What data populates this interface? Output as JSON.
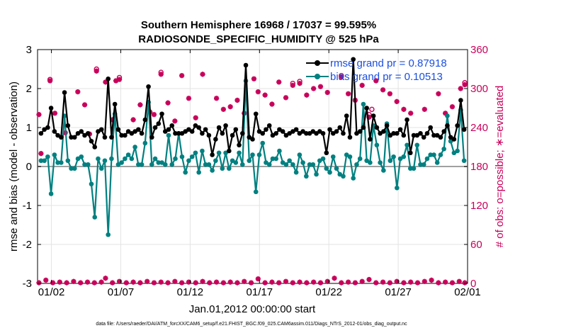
{
  "chart_data": {
    "type": "line",
    "title_line1": "Southern Hemisphere 16968 / 17037 = 99.595%",
    "title_line2": "RADIOSONDE_SPECIFIC_HUMIDITY @ 525 hPa",
    "ylabel_left": "rmse and bias (model - observation)",
    "ylabel_right": "# of obs: o=possible; ∗=evaluated",
    "xlabel": "Jan.01,2012 00:00:00 start",
    "footnote": "data file: /Users/raeder/DAI/ATM_forcXX/CAM6_setup/f.e21.FHIST_BGC.f09_025.CAM6assim.011/Diags_NTrS_2012-01/obs_diag_output.nc",
    "ylim_left": [
      -3,
      3
    ],
    "ylim_right": [
      0,
      360
    ],
    "xlim": [
      0.5,
      31.5
    ],
    "x_ticks": [
      1.5,
      6.5,
      11.5,
      16.5,
      21.5,
      26.5,
      31.5
    ],
    "x_tick_labels": [
      "01/02",
      "01/07",
      "01/12",
      "01/17",
      "01/22",
      "01/27",
      "02/01"
    ],
    "y_ticks_left": [
      3,
      2,
      1,
      0,
      -1,
      -2,
      -3
    ],
    "y_ticks_right": [
      360,
      300,
      240,
      180,
      120,
      60,
      0
    ],
    "legend": {
      "rmse_label": "rmse grand pr = 0.87918",
      "bias_label": "bias grand pr = 0.10513",
      "placement": "top-right"
    },
    "colors": {
      "rmse": "#000000",
      "bias": "#008080",
      "obs": "#c8005a",
      "legend_text": "#1a4fe0",
      "zero_line": "#a0a0a0"
    },
    "series": [
      {
        "name": "rmse",
        "values": [
          0.85,
          0.95,
          1.0,
          1.5,
          0.9,
          0.8,
          0.75,
          1.9,
          1.05,
          0.75,
          0.75,
          0.85,
          0.9,
          0.8,
          0.85,
          0.65,
          0.5,
          0.9,
          0.95,
          0.75,
          2.25,
          0.75,
          1.6,
          0.95,
          0.8,
          0.8,
          0.9,
          0.85,
          0.9,
          0.95,
          0.85,
          1.2,
          2.05,
          0.75,
          1.0,
          1.1,
          1.35,
          0.9,
          0.95,
          1.05,
          0.85,
          0.85,
          0.85,
          0.9,
          0.95,
          0.9,
          1.05,
          1.0,
          0.85,
          0.95,
          0.8,
          0.3,
          0.7,
          1.0,
          0.85,
          1.05,
          0.4,
          0.8,
          0.95,
          0.55,
          0.85,
          2.6,
          0.75,
          0.7,
          1.35,
          0.9,
          0.85,
          0.95,
          1.05,
          0.8,
          0.85,
          0.95,
          0.9,
          0.8,
          0.85,
          0.9,
          0.95,
          0.85,
          0.9,
          0.85,
          0.85,
          0.9,
          0.85,
          0.9,
          0.85,
          0.35,
          0.95,
          0.85,
          0.9,
          1.0,
          0.85,
          1.3,
          0.75,
          2.75,
          0.85,
          0.9,
          1.0,
          1.5,
          0.7,
          1.3,
          1.0,
          0.85,
          0.9,
          1.05,
          0.8,
          0.85,
          0.85,
          0.95,
          0.8,
          1.2,
          0.35,
          0.8,
          0.8,
          0.85,
          0.75,
          0.85,
          1.0,
          0.8,
          0.8,
          0.75,
          0.9,
          1.05,
          0.75,
          0.7,
          1.05,
          1.7,
          0.95
        ]
      },
      {
        "name": "bias",
        "values": [
          0.15,
          0.15,
          0.25,
          -0.7,
          0.3,
          0.1,
          0.1,
          1.3,
          0.15,
          -0.05,
          -0.05,
          0.2,
          0.25,
          0.05,
          0.05,
          -0.45,
          -1.3,
          0.2,
          -0.05,
          0.15,
          -1.75,
          0.2,
          1.35,
          0.05,
          0.1,
          0.2,
          0.3,
          0.2,
          0.5,
          0.05,
          0.05,
          0.6,
          1.65,
          0.05,
          0.2,
          0.1,
          0.1,
          0.05,
          0.8,
          0.05,
          0.2,
          0.85,
          0.25,
          -0.15,
          0.15,
          0.25,
          0.35,
          -0.15,
          0.4,
          0.05,
          0.05,
          -0.1,
          0.15,
          0.35,
          -0.05,
          0.35,
          -0.05,
          0.15,
          0.1,
          0.35,
          0.05,
          2.2,
          0.15,
          0.3,
          -0.65,
          0.3,
          0.6,
          0.1,
          0.05,
          0.2,
          0.2,
          0.4,
          0.1,
          0.05,
          0.15,
          0.05,
          -0.15,
          0.3,
          0.1,
          -0.25,
          0.05,
          0.05,
          -0.2,
          0.15,
          0.2,
          -0.05,
          -0.15,
          0.25,
          -0.05,
          -0.2,
          -0.25,
          0.3,
          0.25,
          -0.3,
          0.05,
          0.2,
          1.6,
          0.15,
          0.1,
          1.05,
          0.55,
          0.1,
          -0.1,
          1.1,
          0.15,
          0.25,
          -0.55,
          0.2,
          0.25,
          0.55,
          -0.05,
          -0.05,
          0.55,
          0.05,
          0.05,
          0.2,
          0.3,
          0.3,
          0.1,
          0.3,
          0.45,
          1.3,
          0.65,
          0.35,
          0.4,
          1.45,
          0.15
        ]
      }
    ],
    "obs_evaluated": [
      {
        "x": 0.6,
        "y": 260
      },
      {
        "x": 0.75,
        "y": 200
      },
      {
        "x": 1.4,
        "y": 312
      },
      {
        "x": 1.75,
        "y": 262
      },
      {
        "x": 2.5,
        "y": 232
      },
      {
        "x": 3.4,
        "y": 295
      },
      {
        "x": 3.9,
        "y": 275
      },
      {
        "x": 4.25,
        "y": 230
      },
      {
        "x": 4.75,
        "y": 327
      },
      {
        "x": 5.4,
        "y": 310
      },
      {
        "x": 5.9,
        "y": 252
      },
      {
        "x": 6.15,
        "y": 312
      },
      {
        "x": 6.4,
        "y": 314
      },
      {
        "x": 7.4,
        "y": 252
      },
      {
        "x": 7.9,
        "y": 275
      },
      {
        "x": 8.6,
        "y": 264
      },
      {
        "x": 8.9,
        "y": 260
      },
      {
        "x": 9.4,
        "y": 322
      },
      {
        "x": 9.9,
        "y": 278
      },
      {
        "x": 10.4,
        "y": 250
      },
      {
        "x": 10.9,
        "y": 320
      },
      {
        "x": 11.4,
        "y": 285
      },
      {
        "x": 11.9,
        "y": 255
      },
      {
        "x": 12.4,
        "y": 322
      },
      {
        "x": 13.4,
        "y": 285
      },
      {
        "x": 13.9,
        "y": 268
      },
      {
        "x": 14.4,
        "y": 272
      },
      {
        "x": 14.9,
        "y": 282
      },
      {
        "x": 15.4,
        "y": 262
      },
      {
        "x": 16.1,
        "y": 315
      },
      {
        "x": 16.4,
        "y": 295
      },
      {
        "x": 16.9,
        "y": 290
      },
      {
        "x": 17.4,
        "y": 276
      },
      {
        "x": 17.9,
        "y": 310
      },
      {
        "x": 18.4,
        "y": 286
      },
      {
        "x": 18.9,
        "y": 305
      },
      {
        "x": 19.4,
        "y": 308
      },
      {
        "x": 19.9,
        "y": 290
      },
      {
        "x": 20.4,
        "y": 300
      },
      {
        "x": 20.9,
        "y": 303
      },
      {
        "x": 21.4,
        "y": 294
      },
      {
        "x": 22.4,
        "y": 318
      },
      {
        "x": 22.9,
        "y": 292
      },
      {
        "x": 23.4,
        "y": 282
      },
      {
        "x": 23.9,
        "y": 305
      },
      {
        "x": 24.4,
        "y": 256
      },
      {
        "x": 24.9,
        "y": 312
      },
      {
        "x": 25.4,
        "y": 298
      },
      {
        "x": 25.9,
        "y": 292
      },
      {
        "x": 26.4,
        "y": 280
      },
      {
        "x": 26.9,
        "y": 268
      },
      {
        "x": 27.4,
        "y": 262
      },
      {
        "x": 28.4,
        "y": 268
      },
      {
        "x": 29.4,
        "y": 292
      },
      {
        "x": 29.9,
        "y": 262
      },
      {
        "x": 30.4,
        "y": 272
      },
      {
        "x": 31.0,
        "y": 300
      },
      {
        "x": 31.3,
        "y": 306
      }
    ],
    "obs_possible": [
      {
        "x": 1.4,
        "y": 314
      },
      {
        "x": 4.75,
        "y": 330
      },
      {
        "x": 6.4,
        "y": 317
      },
      {
        "x": 9.4,
        "y": 325
      },
      {
        "x": 18.9,
        "y": 308
      },
      {
        "x": 19.4,
        "y": 311
      },
      {
        "x": 22.4,
        "y": 320
      },
      {
        "x": 24.4,
        "y": 260
      },
      {
        "x": 24.6,
        "y": 268
      },
      {
        "x": 31.3,
        "y": 309
      }
    ],
    "obs_bottom": [
      {
        "x": 0.6,
        "y": 1
      },
      {
        "x": 1.1,
        "y": 5
      },
      {
        "x": 1.6,
        "y": 1
      },
      {
        "x": 2.1,
        "y": 2
      },
      {
        "x": 2.6,
        "y": 1
      },
      {
        "x": 3.1,
        "y": 3
      },
      {
        "x": 3.6,
        "y": 1
      },
      {
        "x": 4.1,
        "y": 2
      },
      {
        "x": 4.6,
        "y": 1
      },
      {
        "x": 5.1,
        "y": 2
      },
      {
        "x": 5.4,
        "y": 8
      },
      {
        "x": 5.9,
        "y": 1
      },
      {
        "x": 6.4,
        "y": 3
      },
      {
        "x": 6.9,
        "y": 1
      },
      {
        "x": 7.4,
        "y": 2
      },
      {
        "x": 7.9,
        "y": 1
      },
      {
        "x": 8.4,
        "y": 3
      },
      {
        "x": 8.9,
        "y": 1
      },
      {
        "x": 9.4,
        "y": 2
      },
      {
        "x": 9.9,
        "y": 1
      },
      {
        "x": 10.4,
        "y": 3
      },
      {
        "x": 10.9,
        "y": 1
      },
      {
        "x": 11.4,
        "y": 2
      },
      {
        "x": 11.9,
        "y": 1
      },
      {
        "x": 12.4,
        "y": 3
      },
      {
        "x": 12.9,
        "y": 1
      },
      {
        "x": 13.4,
        "y": 2
      },
      {
        "x": 13.9,
        "y": 1
      },
      {
        "x": 14.4,
        "y": 2
      },
      {
        "x": 14.9,
        "y": 1
      },
      {
        "x": 15.4,
        "y": 3
      },
      {
        "x": 15.9,
        "y": 1
      },
      {
        "x": 16.4,
        "y": 7
      },
      {
        "x": 16.9,
        "y": 1
      },
      {
        "x": 17.4,
        "y": 2
      },
      {
        "x": 17.9,
        "y": 1
      },
      {
        "x": 18.4,
        "y": 3
      },
      {
        "x": 18.9,
        "y": 1
      },
      {
        "x": 19.4,
        "y": 2
      },
      {
        "x": 19.9,
        "y": 1
      },
      {
        "x": 20.4,
        "y": 2
      },
      {
        "x": 20.9,
        "y": 1
      },
      {
        "x": 21.4,
        "y": 3
      },
      {
        "x": 21.9,
        "y": 8
      },
      {
        "x": 22.4,
        "y": 1
      },
      {
        "x": 22.9,
        "y": 2
      },
      {
        "x": 23.4,
        "y": 1
      },
      {
        "x": 23.9,
        "y": 3
      },
      {
        "x": 24.4,
        "y": 6
      },
      {
        "x": 24.9,
        "y": 1
      },
      {
        "x": 25.4,
        "y": 2
      },
      {
        "x": 25.9,
        "y": 1
      },
      {
        "x": 26.4,
        "y": 3
      },
      {
        "x": 26.9,
        "y": 1
      },
      {
        "x": 27.4,
        "y": 2
      },
      {
        "x": 27.9,
        "y": 1
      },
      {
        "x": 28.4,
        "y": 3
      },
      {
        "x": 28.9,
        "y": 5
      },
      {
        "x": 29.4,
        "y": 1
      },
      {
        "x": 29.9,
        "y": 2
      },
      {
        "x": 30.4,
        "y": 1
      },
      {
        "x": 30.9,
        "y": 3
      },
      {
        "x": 31.3,
        "y": 1
      }
    ]
  }
}
